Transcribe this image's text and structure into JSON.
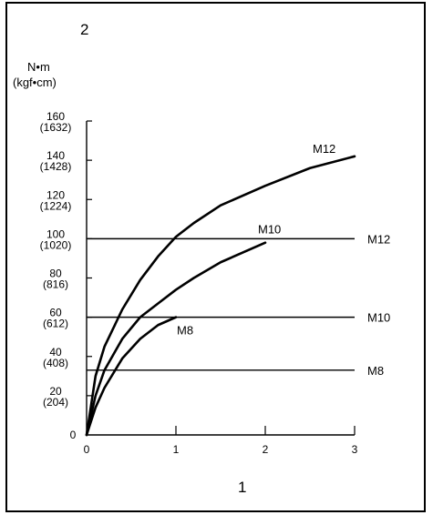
{
  "corner_labels": {
    "top": "2",
    "bottom": "1"
  },
  "units": {
    "primary": "N•m",
    "secondary": "(kgf•cm)"
  },
  "chart_data": {
    "type": "line",
    "xlim": [
      0,
      3
    ],
    "ylim": [
      0,
      160
    ],
    "x_ticks": [
      {
        "value": 0,
        "label": "0"
      },
      {
        "value": 1,
        "label": "1"
      },
      {
        "value": 2,
        "label": "2"
      },
      {
        "value": 3,
        "label": "3"
      }
    ],
    "y_ticks": [
      {
        "value": 0,
        "label": "0",
        "sub": ""
      },
      {
        "value": 20,
        "label": "20",
        "sub": "(204)"
      },
      {
        "value": 40,
        "label": "40",
        "sub": "(408)"
      },
      {
        "value": 60,
        "label": "60",
        "sub": "(612)"
      },
      {
        "value": 80,
        "label": "80",
        "sub": "(816)"
      },
      {
        "value": 100,
        "label": "100",
        "sub": "(1020)"
      },
      {
        "value": 120,
        "label": "120",
        "sub": "(1224)"
      },
      {
        "value": 140,
        "label": "140",
        "sub": "(1428)"
      },
      {
        "value": 160,
        "label": "160",
        "sub": "(1632)"
      }
    ],
    "grid": false,
    "reference_lines": [
      {
        "name": "M12",
        "y": 100
      },
      {
        "name": "M10",
        "y": 60
      },
      {
        "name": "M8",
        "y": 33
      }
    ],
    "series": [
      {
        "name": "M12",
        "x": [
          0,
          0.1,
          0.2,
          0.4,
          0.6,
          0.8,
          1.0,
          1.2,
          1.5,
          2.0,
          2.5,
          3.0
        ],
        "y": [
          0,
          30,
          45,
          64,
          79,
          91,
          101,
          108,
          117,
          127,
          136,
          142
        ]
      },
      {
        "name": "M10",
        "x": [
          0,
          0.1,
          0.2,
          0.4,
          0.6,
          0.8,
          1.0,
          1.2,
          1.5,
          2.0
        ],
        "y": [
          0,
          20,
          33,
          49,
          60,
          67,
          74,
          80,
          88,
          98
        ]
      },
      {
        "name": "M8",
        "x": [
          0,
          0.1,
          0.2,
          0.4,
          0.6,
          0.8,
          1.0
        ],
        "y": [
          0,
          14,
          24,
          39,
          49,
          56,
          60
        ]
      }
    ]
  }
}
